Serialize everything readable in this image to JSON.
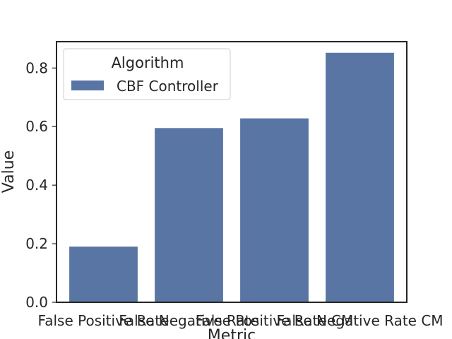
{
  "chart_data": {
    "type": "bar",
    "xlabel": "Metric",
    "ylabel": "Value",
    "categories": [
      "False Positive Rate",
      "False Negative Rate",
      "False Positive Rate CM",
      "False Negative Rate CM"
    ],
    "series": [
      {
        "name": "CBF Controller",
        "values": [
          0.19,
          0.595,
          0.628,
          0.852
        ]
      }
    ],
    "ylim": [
      0,
      0.89
    ],
    "yticks": [
      "0.0",
      "0.2",
      "0.4",
      "0.6",
      "0.8"
    ],
    "legend": {
      "title": "Algorithm",
      "placement": "top-left"
    },
    "grid": false,
    "colors": {
      "bar": "#5975a4",
      "axis": "#262626"
    }
  }
}
